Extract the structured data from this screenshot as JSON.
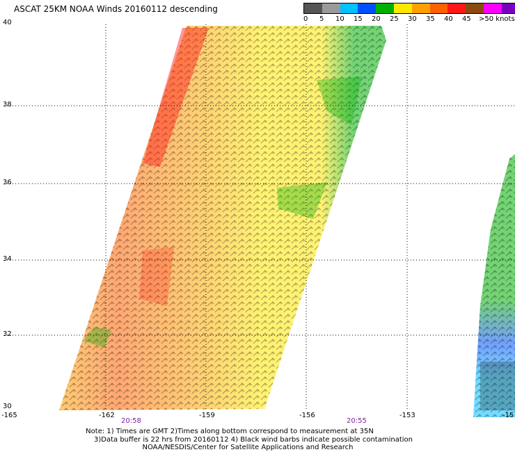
{
  "title": "ASCAT 25KM NOAA Winds 20160112 descending",
  "legend": {
    "labels": [
      "0",
      "5",
      "10",
      "15",
      "20",
      "25",
      "30",
      "35",
      "40",
      "45",
      ">50 knots"
    ],
    "colors": [
      "#555555",
      "#9a9a9a",
      "#00c0ff",
      "#0050ff",
      "#00b000",
      "#ffe800",
      "#ffa000",
      "#ff6000",
      "#ff1818",
      "#8a4a10",
      "#ff00ff",
      "#7a00c0"
    ]
  },
  "axes": {
    "lat_labels": [
      "40",
      "38",
      "36",
      "34",
      "32",
      "30"
    ],
    "lon_labels": [
      "-165",
      "-162",
      "-159",
      "-156",
      "-153",
      "-15"
    ]
  },
  "times": [
    "20:58",
    "20:55"
  ],
  "notes": {
    "line1": "Note: 1) Times are GMT 2)Times along bottom correspond to measurement at 35N",
    "line2": "3)Data buffer is 22 hrs from 20160112 4) Black wind barbs indicate possible contamination",
    "line3": "NOAA/NESDIS/Center for Satellite Applications and Research"
  }
}
